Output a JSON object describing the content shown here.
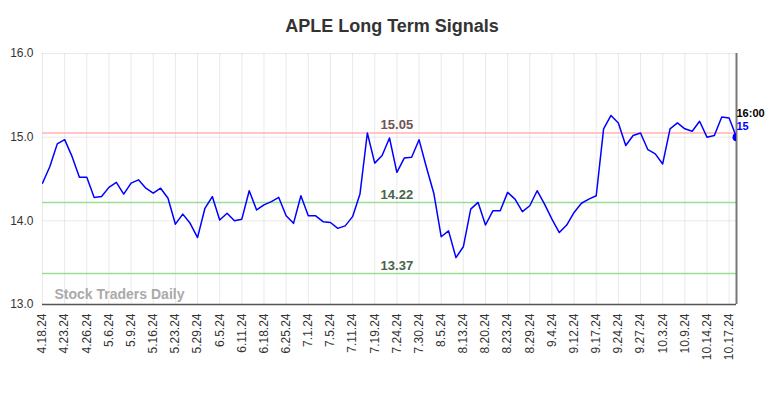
{
  "chart_data": {
    "type": "line",
    "title": "APLE Long Term Signals",
    "categories": [
      "4.18.24",
      null,
      null,
      "4.23.24",
      null,
      null,
      "4.26.24",
      null,
      null,
      "5.6.24",
      null,
      null,
      "5.9.24",
      null,
      null,
      "5.16.24",
      null,
      null,
      "5.23.24",
      null,
      null,
      "5.29.24",
      null,
      null,
      "6.5.24",
      null,
      null,
      "6.11.24",
      null,
      null,
      "6.18.24",
      null,
      null,
      "6.25.24",
      null,
      null,
      "7.1.24",
      null,
      null,
      "7.5.24",
      null,
      null,
      "7.11.24",
      null,
      null,
      "7.19.24",
      null,
      null,
      "7.24.24",
      null,
      null,
      "7.30.24",
      null,
      null,
      "8.5.24",
      null,
      null,
      "8.13.24",
      null,
      null,
      "8.20.24",
      null,
      null,
      "8.23.24",
      null,
      null,
      "8.29.24",
      null,
      null,
      "9.4.24",
      null,
      null,
      "9.12.24",
      null,
      null,
      "9.17.24",
      null,
      null,
      "9.24.24",
      null,
      null,
      "9.27.24",
      null,
      null,
      "10.3.24",
      null,
      null,
      "10.9.24",
      null,
      null,
      "10.14.24",
      null,
      null,
      "10.17.24",
      null
    ],
    "values": [
      14.45,
      14.65,
      14.92,
      14.97,
      14.77,
      14.52,
      14.52,
      14.28,
      14.29,
      14.4,
      14.46,
      14.32,
      14.45,
      14.49,
      14.39,
      14.33,
      14.39,
      14.27,
      13.96,
      14.08,
      13.97,
      13.8,
      14.15,
      14.29,
      14.01,
      14.09,
      14.0,
      14.02,
      14.36,
      14.13,
      14.19,
      14.23,
      14.28,
      14.06,
      13.97,
      14.3,
      14.06,
      14.06,
      13.99,
      13.98,
      13.91,
      13.94,
      14.05,
      14.32,
      15.05,
      14.69,
      14.78,
      14.99,
      14.58,
      14.75,
      14.76,
      14.97,
      14.64,
      14.33,
      13.81,
      13.88,
      13.56,
      13.69,
      14.14,
      14.22,
      13.95,
      14.12,
      14.12,
      14.34,
      14.26,
      14.11,
      14.18,
      14.36,
      14.2,
      14.02,
      13.86,
      13.95,
      14.1,
      14.21,
      14.26,
      14.3,
      15.1,
      15.26,
      15.17,
      14.9,
      15.02,
      15.05,
      14.85,
      14.8,
      14.68,
      15.1,
      15.17,
      15.1,
      15.07,
      15.19,
      15.0,
      15.02,
      15.24,
      15.23,
      15
    ],
    "color": "#0000ff",
    "ylim": [
      13,
      16
    ],
    "yticks": [
      13,
      14,
      15,
      16
    ],
    "grid": true,
    "reference_lines": [
      {
        "value": 15.05,
        "color": "#ffb3b3"
      },
      {
        "value": 14.22,
        "color": "#99dd99"
      },
      {
        "value": 13.37,
        "color": "#99dd99"
      }
    ],
    "end_label": "16:00",
    "watermark": "Stock Traders Daily"
  }
}
